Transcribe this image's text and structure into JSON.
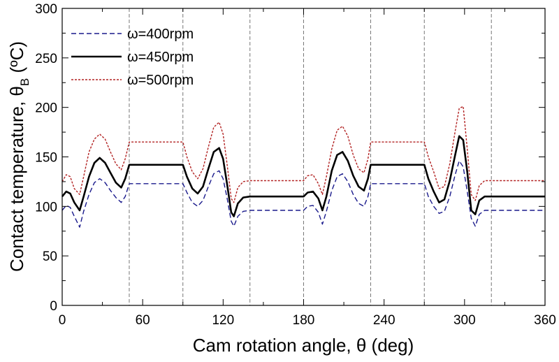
{
  "chart_data": {
    "type": "line",
    "xlabel": "Cam rotation angle, θ (deg)",
    "ylabel_main": "Contact temperature, θ",
    "ylabel_sub": "B",
    "ylabel_unit": " (ºC)",
    "xlim": [
      0,
      360
    ],
    "ylim": [
      0,
      300
    ],
    "xticks": [
      "0",
      "60",
      "120",
      "180",
      "240",
      "300",
      "360"
    ],
    "yticks": [
      "0",
      "50",
      "100",
      "150",
      "200",
      "250",
      "300"
    ],
    "grid": false,
    "legend_placement": "top-left",
    "vertical_markers": [
      50,
      90,
      140,
      180,
      230,
      270,
      320
    ],
    "series": [
      {
        "name": "ω=400rpm",
        "color": "#1a1a8c",
        "style": "dashed",
        "x": [
          0,
          3,
          6,
          9,
          13,
          16,
          20,
          24,
          28,
          32,
          36,
          40,
          44,
          47,
          50,
          90,
          93,
          97,
          101,
          105,
          109,
          113,
          117,
          120,
          123,
          126,
          128,
          131,
          135,
          140,
          180,
          183,
          187,
          191,
          194,
          197,
          201,
          205,
          209,
          213,
          217,
          221,
          225,
          228,
          230,
          270,
          273,
          277,
          281,
          285,
          289,
          293,
          296,
          299,
          302,
          305,
          308,
          311,
          315,
          320,
          360
        ],
        "y": [
          96,
          101,
          99,
          90,
          79,
          95,
          112,
          124,
          128,
          124,
          116,
          109,
          104,
          110,
          123,
          123,
          114,
          104,
          100,
          106,
          120,
          133,
          136,
          128,
          108,
          85,
          80,
          90,
          95,
          96,
          96,
          100,
          101,
          94,
          82,
          95,
          116,
          130,
          133,
          125,
          112,
          103,
          100,
          110,
          123,
          123,
          110,
          100,
          93,
          95,
          110,
          132,
          146,
          140,
          115,
          88,
          80,
          92,
          96,
          96,
          96
        ]
      },
      {
        "name": "ω=450rpm",
        "color": "#000000",
        "style": "solid",
        "x": [
          0,
          3,
          6,
          9,
          13,
          16,
          20,
          24,
          28,
          32,
          36,
          40,
          44,
          47,
          50,
          90,
          93,
          97,
          101,
          105,
          109,
          113,
          117,
          120,
          123,
          126,
          128,
          131,
          135,
          140,
          180,
          183,
          187,
          191,
          194,
          197,
          201,
          205,
          209,
          213,
          217,
          221,
          225,
          228,
          230,
          270,
          273,
          277,
          281,
          285,
          289,
          293,
          296,
          299,
          302,
          305,
          308,
          311,
          315,
          320,
          360
        ],
        "y": [
          110,
          115,
          113,
          104,
          96,
          110,
          130,
          144,
          149,
          144,
          134,
          124,
          119,
          128,
          142,
          142,
          130,
          118,
          113,
          120,
          138,
          155,
          159,
          148,
          122,
          94,
          90,
          103,
          109,
          110,
          110,
          114,
          115,
          108,
          96,
          110,
          136,
          152,
          155,
          146,
          131,
          120,
          116,
          128,
          142,
          142,
          128,
          115,
          104,
          107,
          126,
          152,
          171,
          167,
          135,
          96,
          92,
          106,
          110,
          110,
          110
        ]
      },
      {
        "name": "ω=500rpm",
        "color": "#b22222",
        "style": "dotted",
        "x": [
          0,
          3,
          6,
          9,
          13,
          16,
          20,
          24,
          28,
          32,
          36,
          40,
          44,
          47,
          50,
          90,
          93,
          97,
          101,
          105,
          109,
          113,
          117,
          120,
          123,
          126,
          128,
          131,
          135,
          140,
          180,
          183,
          187,
          191,
          194,
          197,
          201,
          205,
          209,
          213,
          217,
          221,
          225,
          228,
          230,
          270,
          273,
          277,
          281,
          285,
          289,
          293,
          296,
          299,
          302,
          305,
          308,
          311,
          315,
          320,
          360
        ],
        "y": [
          125,
          132,
          130,
          118,
          112,
          130,
          155,
          168,
          173,
          168,
          155,
          143,
          137,
          148,
          165,
          165,
          150,
          135,
          128,
          138,
          160,
          180,
          185,
          173,
          142,
          108,
          104,
          119,
          125,
          126,
          126,
          131,
          132,
          123,
          112,
          130,
          158,
          177,
          181,
          171,
          152,
          138,
          134,
          148,
          165,
          165,
          150,
          135,
          118,
          120,
          143,
          176,
          199,
          201,
          158,
          112,
          106,
          121,
          126,
          126,
          126
        ]
      }
    ]
  }
}
